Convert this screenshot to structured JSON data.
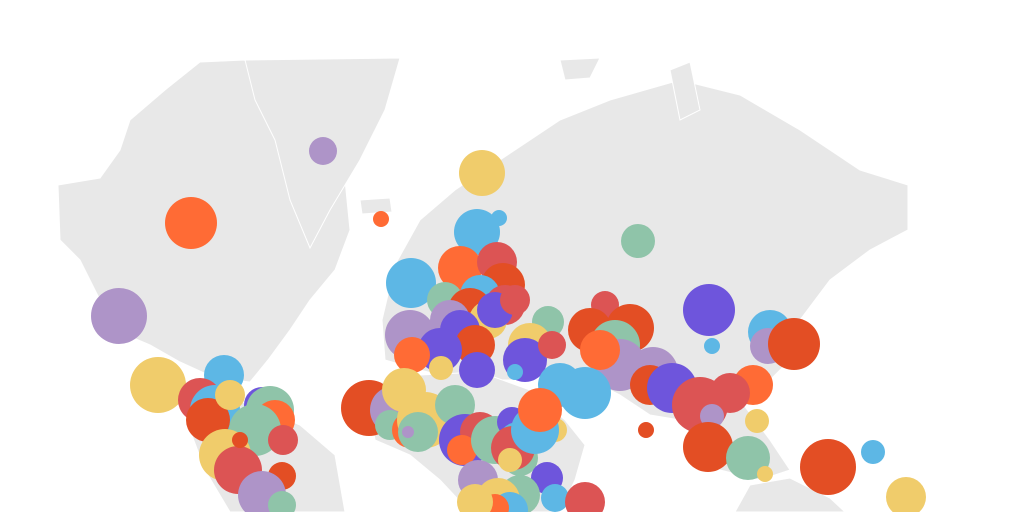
{
  "map": {
    "land_color": "#e8e8e8",
    "border_color": "#ffffff",
    "background": "#ffffff"
  },
  "bubble_palette": {
    "lavender": "#ae94c8",
    "orange": "#ff6b35",
    "yellow": "#f0cc6b",
    "sky_blue": "#5db7e5",
    "sage_green": "#8fc4a9",
    "coral_red": "#dc5454",
    "red_orange": "#e34e24",
    "violet": "#6e55dc"
  }
}
